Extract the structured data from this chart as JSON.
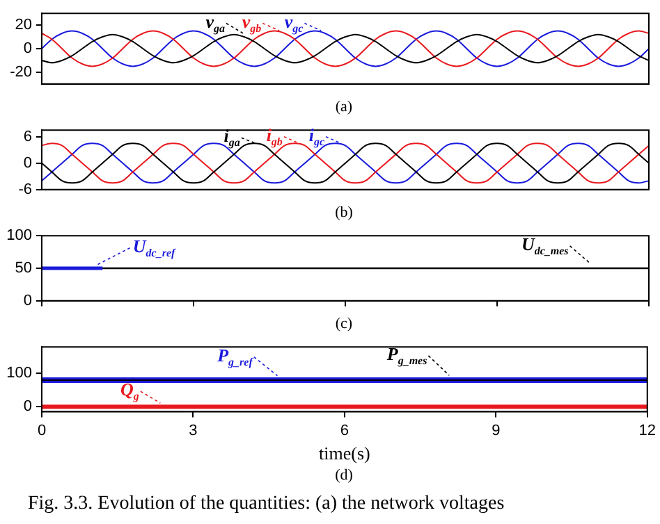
{
  "chart_data": [
    {
      "type": "line",
      "categories": [
        null,
        null,
        null,
        null,
        null,
        null,
        null,
        null,
        null,
        null,
        null,
        null,
        null,
        null,
        null,
        null,
        null,
        null,
        null,
        null,
        null,
        null,
        null,
        null,
        null,
        null,
        null,
        null,
        null,
        null,
        null,
        null,
        null,
        null,
        null,
        null,
        null,
        null,
        null,
        null,
        null,
        null,
        null,
        null,
        null,
        null,
        null,
        null,
        null,
        null,
        null,
        null,
        null,
        null,
        null,
        null,
        null,
        null,
        null,
        null,
        null
      ],
      "ylim": [
        -30,
        30
      ],
      "yticks": [
        -20,
        0,
        20
      ],
      "tick_labels": "y",
      "grid": false,
      "legend": "top",
      "annotations": [
        "(a)"
      ],
      "series": [
        {
          "name": "v$_{ga}$",
          "color": "#000000",
          "values": [
            -10,
            -12,
            -10,
            -6,
            0,
            6,
            10,
            12,
            10,
            6,
            0,
            -6,
            -10,
            -12,
            -10,
            -6,
            0,
            6,
            10,
            12,
            10,
            6,
            0,
            -6,
            -10,
            -12,
            -10,
            -6,
            0,
            6,
            10,
            12,
            10,
            6,
            0,
            -6,
            -10,
            -12,
            -10,
            -6,
            0,
            6,
            10,
            12,
            10,
            6,
            0,
            -6,
            -10,
            -12,
            -10,
            -6,
            0,
            6,
            10,
            12,
            10,
            6,
            0,
            -6,
            -10
          ]
        },
        {
          "name": "v$_{gb}$",
          "color": "#e8191e",
          "values": [
            13,
            8,
            0,
            -8,
            -13,
            -15,
            -13,
            -8,
            0,
            8,
            13,
            15,
            13,
            8,
            0,
            -8,
            -13,
            -15,
            -13,
            -8,
            0,
            8,
            13,
            15,
            13,
            8,
            0,
            -8,
            -13,
            -15,
            -13,
            -8,
            0,
            8,
            13,
            15,
            13,
            8,
            0,
            -8,
            -13,
            -15,
            -13,
            -8,
            0,
            8,
            13,
            15,
            13,
            8,
            0,
            -8,
            -13,
            -15,
            -13,
            -8,
            0,
            8,
            13,
            15,
            13
          ]
        },
        {
          "name": "v$_{gc}$",
          "color": "#1a1adc",
          "values": [
            0,
            8,
            13,
            15,
            13,
            8,
            0,
            -8,
            -13,
            -15,
            -13,
            -8,
            0,
            8,
            13,
            15,
            13,
            8,
            0,
            -8,
            -13,
            -15,
            -13,
            -8,
            0,
            8,
            13,
            15,
            13,
            8,
            0,
            -8,
            -13,
            -15,
            -13,
            -8,
            0,
            8,
            13,
            15,
            13,
            8,
            0,
            -8,
            -13,
            -15,
            -13,
            -8,
            0,
            8,
            13,
            15,
            13,
            8,
            0,
            -8,
            -13,
            -15,
            -13,
            -8,
            0
          ]
        }
      ]
    },
    {
      "type": "line",
      "categories": [
        null,
        null,
        null,
        null,
        null,
        null,
        null,
        null,
        null,
        null,
        null,
        null,
        null,
        null,
        null,
        null,
        null,
        null,
        null,
        null,
        null,
        null,
        null,
        null,
        null,
        null,
        null,
        null,
        null,
        null,
        null,
        null,
        null,
        null,
        null,
        null,
        null,
        null,
        null,
        null,
        null,
        null,
        null,
        null,
        null,
        null,
        null,
        null,
        null,
        null,
        null,
        null,
        null,
        null,
        null,
        null,
        null,
        null,
        null,
        null,
        null
      ],
      "ylim": [
        -6,
        7.5
      ],
      "yticks": [
        -6,
        0,
        6
      ],
      "tick_labels": "y",
      "grid": false,
      "legend": "top",
      "annotations": [
        "(b)"
      ],
      "series": [
        {
          "name": "i$_{ga}$",
          "color": "#000000",
          "values": [
            0,
            -2,
            -4,
            -4.5,
            -4,
            -2,
            0,
            2,
            4,
            4.5,
            4,
            2,
            0,
            -2,
            -4,
            -4.5,
            -4,
            -2,
            0,
            2,
            4,
            4.5,
            4,
            2,
            0,
            -2,
            -4,
            -4.5,
            -4,
            -2,
            0,
            2,
            4,
            4.5,
            4,
            2,
            0,
            -2,
            -4,
            -4.5,
            -4,
            -2,
            0,
            2,
            4,
            4.5,
            4,
            2,
            0,
            -2,
            -4,
            -4.5,
            -4,
            -2,
            0,
            2,
            4,
            4.5,
            4,
            2,
            0
          ]
        },
        {
          "name": "i$_{gb}$",
          "color": "#e8191e",
          "values": [
            4,
            4.5,
            4,
            2,
            0,
            -2,
            -4,
            -4.5,
            -4,
            -2,
            0,
            2,
            4,
            4.5,
            4,
            2,
            0,
            -2,
            -4,
            -4.5,
            -4,
            -2,
            0,
            2,
            4,
            4.5,
            4,
            2,
            0,
            -2,
            -4,
            -4.5,
            -4,
            -2,
            0,
            2,
            4,
            4.5,
            4,
            2,
            0,
            -2,
            -4,
            -4.5,
            -4,
            -2,
            0,
            2,
            4,
            4.5,
            4,
            2,
            0,
            -2,
            -4,
            -4.5,
            -4,
            -2,
            0,
            2,
            4
          ]
        },
        {
          "name": "i$_{gc}$",
          "color": "#1a1adc",
          "values": [
            -4,
            -2,
            0,
            2,
            4,
            4.5,
            4,
            2,
            0,
            -2,
            -4,
            -4.5,
            -4,
            -2,
            0,
            2,
            4,
            4.5,
            4,
            2,
            0,
            -2,
            -4,
            -4.5,
            -4,
            -2,
            0,
            2,
            4,
            4.5,
            4,
            2,
            0,
            -2,
            -4,
            -4.5,
            -4,
            -2,
            0,
            2,
            4,
            4.5,
            4,
            2,
            0,
            -2,
            -4,
            -4.5,
            -4,
            -2,
            0,
            2,
            4,
            4.5,
            4,
            2,
            0,
            -2,
            -4,
            -4.5,
            -4
          ]
        }
      ]
    },
    {
      "type": "line",
      "xlim": [
        0,
        12
      ],
      "xticks": [
        0,
        3,
        6,
        9,
        12
      ],
      "ylim": [
        0,
        100
      ],
      "yticks": [
        0,
        50,
        100
      ],
      "tick_labels": "y",
      "grid": false,
      "legend": "top",
      "annotations": [
        "(c)"
      ],
      "series": [
        {
          "name": "U$_{dc_ref}$",
          "color": "#1a1adc",
          "x": [
            0,
            1.2
          ],
          "values": [
            50,
            50
          ]
        },
        {
          "name": "U$_{dc_mes}$",
          "color": "#000000",
          "x": [
            0,
            12
          ],
          "values": [
            50,
            50
          ]
        }
      ]
    },
    {
      "type": "line",
      "xlim": [
        0,
        12
      ],
      "xticks": [
        0,
        3,
        6,
        9,
        12
      ],
      "ylim": [
        -15,
        180
      ],
      "yticks": [
        0,
        100
      ],
      "xlabel": "time(s)",
      "grid": false,
      "legend": "top",
      "annotations": [
        "(d)",
        "Fig. 3.3. Evolution of the quantities: (a) the network voltages"
      ],
      "series": [
        {
          "name": "P$_{g_mes}$",
          "color": "#000000",
          "x": [
            0,
            12
          ],
          "values": [
            80,
            80
          ]
        },
        {
          "name": "P$_{g_ref}$",
          "color": "#1a1adc",
          "x": [
            0,
            12
          ],
          "values": [
            80,
            80
          ]
        },
        {
          "name": "Q$_{g}$",
          "color": "#e8191e",
          "x": [
            0,
            12
          ],
          "values": [
            0,
            0
          ]
        }
      ]
    }
  ]
}
